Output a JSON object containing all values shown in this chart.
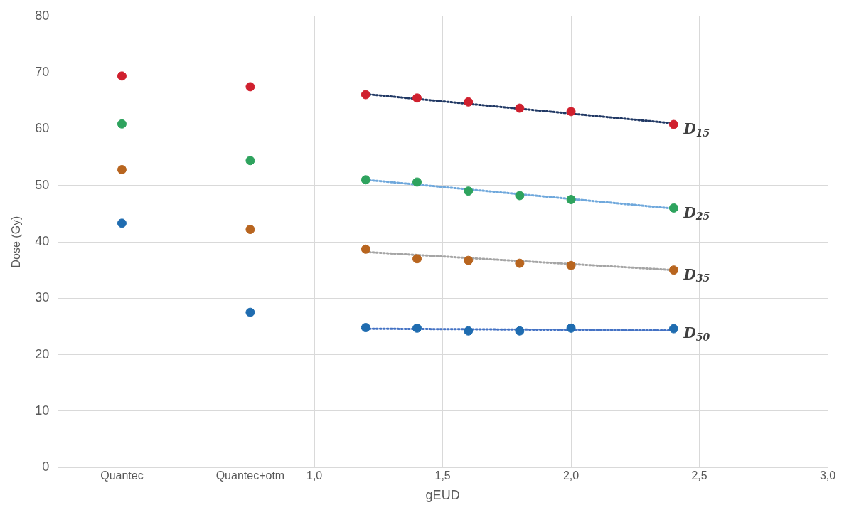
{
  "chart_data": {
    "type": "scatter",
    "xlabel": "gEUD",
    "ylabel": "Dose (Gy)",
    "xlim": [
      0,
      3
    ],
    "ylim": [
      0,
      80
    ],
    "xticks": [
      {
        "value": 0,
        "label": null
      },
      {
        "value": 0.25,
        "label": "Quantec"
      },
      {
        "value": 0.5,
        "label": null
      },
      {
        "value": 0.75,
        "label": "Quantec+otm"
      },
      {
        "value": 1,
        "label": "1,0"
      },
      {
        "value": 1.5,
        "label": "1,5"
      },
      {
        "value": 2,
        "label": "2,0"
      },
      {
        "value": 2.5,
        "label": "2,5"
      },
      {
        "value": 3,
        "label": "3,0"
      }
    ],
    "yticks": [
      0,
      10,
      20,
      30,
      40,
      50,
      60,
      70,
      80
    ],
    "grid": true,
    "legend": false,
    "marker": "circle",
    "series": [
      {
        "name": "D$_{15}$",
        "color": "#d0202e",
        "x": [
          0.25,
          0.75,
          1.2,
          1.4,
          1.6,
          1.8,
          2.0,
          2.4
        ],
        "values": [
          69.4,
          67.5,
          66.1,
          65.5,
          64.8,
          63.7,
          63.1,
          60.8
        ]
      },
      {
        "name": "D$_{25}$",
        "color": "#2ea35e",
        "x": [
          0.25,
          0.75,
          1.2,
          1.4,
          1.6,
          1.8,
          2.0,
          2.4
        ],
        "values": [
          60.9,
          54.4,
          51.0,
          50.6,
          49.0,
          48.2,
          47.5,
          46.0
        ]
      },
      {
        "name": "D$_{35}$",
        "color": "#b8651f",
        "x": [
          0.25,
          0.75,
          1.2,
          1.4,
          1.6,
          1.8,
          2.0,
          2.4
        ],
        "values": [
          52.8,
          42.2,
          38.7,
          37.0,
          36.7,
          36.2,
          35.8,
          35.0
        ]
      },
      {
        "name": "D$_{50}$",
        "color": "#1f6cb0",
        "x": [
          0.25,
          0.75,
          1.2,
          1.4,
          1.6,
          1.8,
          2.0,
          2.4
        ],
        "values": [
          43.3,
          27.5,
          24.8,
          24.7,
          24.2,
          24.2,
          24.7,
          24.6
        ]
      },
      {
        "type": "line",
        "color": "#203864",
        "line_style": "dotted",
        "marker": "none",
        "x": [
          1.2,
          2.4
        ],
        "values": [
          66.2,
          61.0
        ]
      },
      {
        "type": "line",
        "color": "#6fa8dc",
        "line_style": "dotted",
        "marker": "none",
        "x": [
          1.2,
          2.4
        ],
        "values": [
          51.0,
          45.9
        ]
      },
      {
        "type": "line",
        "color": "#a5a5a5",
        "line_style": "dotted",
        "marker": "none",
        "x": [
          1.2,
          2.4
        ],
        "values": [
          38.2,
          35.0
        ]
      },
      {
        "type": "line",
        "color": "#4472c4",
        "line_style": "dotted",
        "marker": "none",
        "x": [
          1.2,
          2.4
        ],
        "values": [
          24.6,
          24.3
        ]
      }
    ]
  }
}
